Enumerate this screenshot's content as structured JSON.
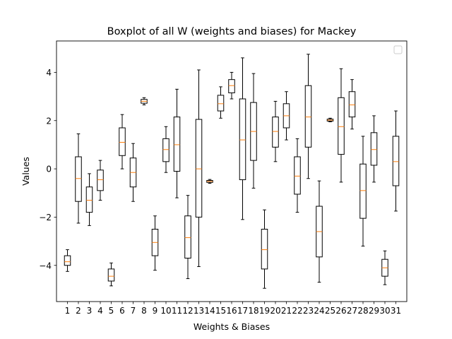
{
  "chart_data": {
    "type": "boxplot",
    "title": "Boxplot of all W (weights and biases) for Mackey",
    "xlabel": "Weights & Biases",
    "ylabel": "Values",
    "ylim": [
      -5.5,
      5.3
    ],
    "yticks": [
      -4,
      -2,
      0,
      2,
      4
    ],
    "grid": false,
    "legend": "top-right (empty)",
    "colors": {
      "box": "#000000",
      "median": "#ff7f0e",
      "background": "#ffffff"
    },
    "categories": [
      "1",
      "2",
      "3",
      "4",
      "5",
      "6",
      "7",
      "8",
      "9",
      "10",
      "11",
      "12",
      "13",
      "14",
      "15",
      "16",
      "17",
      "18",
      "19",
      "20",
      "21",
      "22",
      "23",
      "24",
      "25",
      "26",
      "27",
      "28",
      "29",
      "30",
      "31"
    ],
    "boxes": [
      {
        "label": "1",
        "whislo": -4.25,
        "q1": -4.0,
        "med": -3.85,
        "q3": -3.6,
        "whishi": -3.35
      },
      {
        "label": "2",
        "whislo": -2.25,
        "q1": -1.35,
        "med": -0.4,
        "q3": 0.5,
        "whishi": 1.45
      },
      {
        "label": "3",
        "whislo": -2.35,
        "q1": -1.8,
        "med": -1.3,
        "q3": -0.75,
        "whishi": -0.2
      },
      {
        "label": "4",
        "whislo": -1.3,
        "q1": -0.9,
        "med": -0.45,
        "q3": -0.05,
        "whishi": 0.35
      },
      {
        "label": "5",
        "whislo": -4.85,
        "q1": -4.65,
        "med": -4.45,
        "q3": -4.15,
        "whishi": -3.9
      },
      {
        "label": "6",
        "whislo": 0.0,
        "q1": 0.55,
        "med": 1.1,
        "q3": 1.7,
        "whishi": 2.25
      },
      {
        "label": "7",
        "whislo": -1.35,
        "q1": -0.75,
        "med": -0.15,
        "q3": 0.45,
        "whishi": 1.05
      },
      {
        "label": "8",
        "whislo": 2.65,
        "q1": 2.72,
        "med": 2.8,
        "q3": 2.88,
        "whishi": 2.95
      },
      {
        "label": "9",
        "whislo": -4.2,
        "q1": -3.6,
        "med": -3.05,
        "q3": -2.5,
        "whishi": -1.95
      },
      {
        "label": "10",
        "whislo": -0.15,
        "q1": 0.3,
        "med": 0.8,
        "q3": 1.25,
        "whishi": 1.75
      },
      {
        "label": "11",
        "whislo": -1.2,
        "q1": -0.1,
        "med": 1.0,
        "q3": 2.15,
        "whishi": 3.3
      },
      {
        "label": "12",
        "whislo": -4.55,
        "q1": -3.7,
        "med": -2.85,
        "q3": -1.95,
        "whishi": -1.1
      },
      {
        "label": "13",
        "whislo": -4.05,
        "q1": -2.0,
        "med": 0.0,
        "q3": 2.05,
        "whishi": 4.1
      },
      {
        "label": "14",
        "whislo": -0.6,
        "q1": -0.56,
        "med": -0.52,
        "q3": -0.48,
        "whishi": -0.44
      },
      {
        "label": "15",
        "whislo": 2.1,
        "q1": 2.4,
        "med": 2.7,
        "q3": 3.05,
        "whishi": 3.4
      },
      {
        "label": "16",
        "whislo": 2.9,
        "q1": 3.15,
        "med": 3.45,
        "q3": 3.7,
        "whishi": 4.0
      },
      {
        "label": "17",
        "whislo": -2.1,
        "q1": -0.45,
        "med": 1.2,
        "q3": 2.9,
        "whishi": 4.6
      },
      {
        "label": "18",
        "whislo": -0.8,
        "q1": 0.35,
        "med": 1.55,
        "q3": 2.75,
        "whishi": 3.95
      },
      {
        "label": "19",
        "whislo": -4.95,
        "q1": -4.15,
        "med": -3.35,
        "q3": -2.5,
        "whishi": -1.7
      },
      {
        "label": "20",
        "whislo": 0.3,
        "q1": 0.9,
        "med": 1.55,
        "q3": 2.15,
        "whishi": 2.8
      },
      {
        "label": "21",
        "whislo": 1.2,
        "q1": 1.7,
        "med": 2.2,
        "q3": 2.7,
        "whishi": 3.2
      },
      {
        "label": "22",
        "whislo": -1.8,
        "q1": -1.05,
        "med": -0.3,
        "q3": 0.5,
        "whishi": 1.25
      },
      {
        "label": "23",
        "whislo": -0.4,
        "q1": 0.9,
        "med": 2.15,
        "q3": 3.45,
        "whishi": 4.75
      },
      {
        "label": "24",
        "whislo": -4.7,
        "q1": -3.65,
        "med": -2.6,
        "q3": -1.55,
        "whishi": -0.5
      },
      {
        "label": "25",
        "whislo": 1.95,
        "q1": 1.98,
        "med": 2.02,
        "q3": 2.06,
        "whishi": 2.1
      },
      {
        "label": "26",
        "whislo": -0.55,
        "q1": 0.6,
        "med": 1.75,
        "q3": 2.95,
        "whishi": 4.15
      },
      {
        "label": "27",
        "whislo": 1.65,
        "q1": 2.15,
        "med": 2.65,
        "q3": 3.2,
        "whishi": 3.7
      },
      {
        "label": "28",
        "whislo": -3.2,
        "q1": -2.05,
        "med": -0.9,
        "q3": 0.2,
        "whishi": 1.35
      },
      {
        "label": "29",
        "whislo": -0.55,
        "q1": 0.15,
        "med": 0.8,
        "q3": 1.5,
        "whishi": 2.2
      },
      {
        "label": "30",
        "whislo": -4.8,
        "q1": -4.45,
        "med": -4.1,
        "q3": -3.75,
        "whishi": -3.4
      },
      {
        "label": "31",
        "whislo": -1.75,
        "q1": -0.7,
        "med": 0.3,
        "q3": 1.35,
        "whishi": 2.4
      }
    ]
  }
}
